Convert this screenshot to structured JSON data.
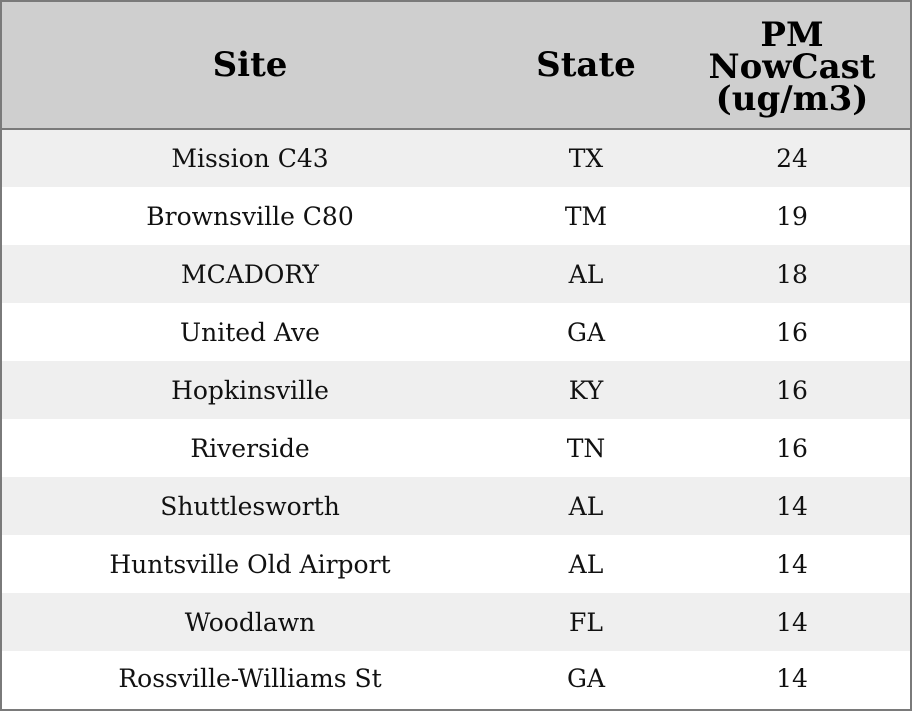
{
  "table": {
    "headers": {
      "site": "Site",
      "state": "State",
      "pm_line1": "PM",
      "pm_line2": "NowCast",
      "pm_line3": "(ug/m3)"
    },
    "rows": [
      {
        "site": "Mission C43",
        "state": "TX",
        "pm": "24"
      },
      {
        "site": "Brownsville C80",
        "state": "TM",
        "pm": "19"
      },
      {
        "site": "MCADORY",
        "state": "AL",
        "pm": "18"
      },
      {
        "site": "United Ave",
        "state": "GA",
        "pm": "16"
      },
      {
        "site": "Hopkinsville",
        "state": "KY",
        "pm": "16"
      },
      {
        "site": "Riverside",
        "state": "TN",
        "pm": "16"
      },
      {
        "site": "Shuttlesworth",
        "state": "AL",
        "pm": "14"
      },
      {
        "site": "Huntsville Old Airport",
        "state": "AL",
        "pm": "14"
      },
      {
        "site": "Woodlawn",
        "state": "FL",
        "pm": "14"
      },
      {
        "site": "Rossville-Williams St",
        "state": "GA",
        "pm": "14"
      }
    ]
  },
  "colors": {
    "header_bg": "#cfcfcf",
    "stripe_bg": "#efefef",
    "border": "#7a7a7a"
  }
}
